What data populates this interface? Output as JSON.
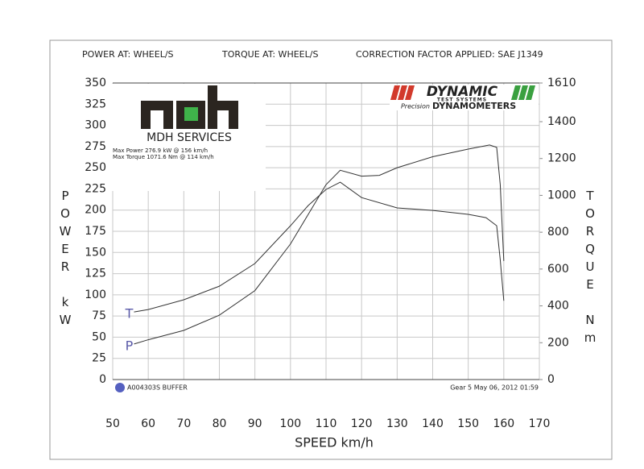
{
  "chart_data": {
    "type": "line",
    "header": [
      "POWER AT: WHEEL/S",
      "TORQUE AT: WHEEL/S",
      "CORRECTION FACTOR APPLIED: SAE J1349"
    ],
    "x_label": "SPEED km/h",
    "y_label": "POWER kW",
    "y2_label": "TORQUE Nm",
    "logo": {
      "name": "MDH SERVICES",
      "lines": [
        "Max Power 276.9 kW @ 156 km/h",
        "Max Torque 1071.6 Nm @ 114 km/h"
      ]
    },
    "brand": {
      "name": "DYNAMIC",
      "sub": "TEST SYSTEMS",
      "precision": "Precision",
      "product": "DYNAMOMETERS"
    },
    "footer_left": "A004303S BUFFER",
    "footer_right": "Gear 5 May 06, 2012 01:59",
    "xlim": [
      50,
      170
    ],
    "xticks": [
      50,
      60,
      70,
      80,
      90,
      100,
      110,
      120,
      130,
      140,
      150,
      160,
      170
    ],
    "ylim": [
      0,
      350
    ],
    "yticks": [
      0,
      25,
      50,
      75,
      100,
      125,
      150,
      175,
      200,
      225,
      250,
      275,
      300,
      325,
      350
    ],
    "y2lim": [
      0,
      1610
    ],
    "y2ticks": [
      0,
      200,
      400,
      600,
      800,
      1000,
      1200,
      1400,
      1610
    ],
    "grid": true,
    "series": [
      {
        "name": "P",
        "color": "#333333",
        "axis": "y",
        "x": [
          56,
          60,
          70,
          80,
          90,
          100,
          105,
          110,
          114,
          120,
          125,
          130,
          140,
          150,
          156,
          158,
          159,
          160
        ],
        "values": [
          42,
          47,
          58,
          76,
          105,
          160,
          195,
          230,
          247,
          240,
          241,
          250,
          263,
          272,
          276.9,
          274,
          230,
          140
        ]
      },
      {
        "name": "T",
        "color": "#333333",
        "axis": "y2",
        "x": [
          56,
          60,
          70,
          80,
          90,
          100,
          105,
          110,
          114,
          120,
          130,
          140,
          150,
          155,
          158,
          159,
          160
        ],
        "values": [
          367,
          380,
          433,
          507,
          630,
          835,
          945,
          1032,
          1071.6,
          988,
          932,
          918,
          897,
          879,
          835,
          650,
          428
        ]
      }
    ]
  }
}
